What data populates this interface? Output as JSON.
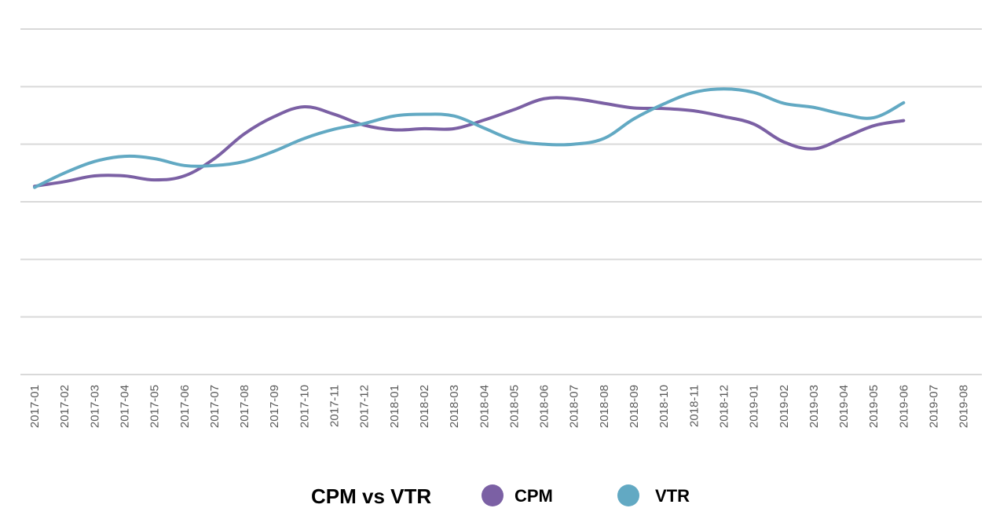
{
  "chart_data": {
    "type": "line",
    "title": "",
    "xlabel": "",
    "ylabel": "",
    "ylim": [
      0,
      6
    ],
    "grid": true,
    "legend_position": "bottom-center",
    "legend_title": "CPM vs VTR",
    "categories": [
      "2017-01",
      "2017-02",
      "2017-03",
      "2017-04",
      "2017-05",
      "2017-06",
      "2017-07",
      "2017-08",
      "2017-09",
      "2017-10",
      "2017-11",
      "2017-12",
      "2018-01",
      "2018-02",
      "2018-03",
      "2018-04",
      "2018-05",
      "2018-06",
      "2018-07",
      "2018-08",
      "2018-09",
      "2018-10",
      "2018-11",
      "2018-12",
      "2019-01",
      "2019-02",
      "2019-03",
      "2019-04",
      "2019-05",
      "2019-06",
      "2019-07",
      "2019-08"
    ],
    "series": [
      {
        "name": "CPM",
        "color": "#7b60a4",
        "values": [
          3.27,
          3.35,
          3.45,
          3.45,
          3.38,
          3.45,
          3.75,
          4.18,
          4.48,
          4.65,
          4.52,
          4.33,
          4.25,
          4.27,
          4.27,
          4.42,
          4.6,
          4.79,
          4.79,
          4.71,
          4.63,
          4.62,
          4.58,
          4.48,
          4.35,
          4.04,
          3.92,
          4.11,
          4.32,
          4.41,
          null,
          null
        ]
      },
      {
        "name": "VTR",
        "color": "#62a9c3",
        "values": [
          3.25,
          3.5,
          3.7,
          3.79,
          3.75,
          3.63,
          3.63,
          3.7,
          3.88,
          4.1,
          4.26,
          4.36,
          4.49,
          4.52,
          4.49,
          4.28,
          4.07,
          4.0,
          4.0,
          4.1,
          4.44,
          4.7,
          4.9,
          4.96,
          4.9,
          4.71,
          4.64,
          4.52,
          4.46,
          4.72,
          null,
          null
        ]
      }
    ]
  }
}
